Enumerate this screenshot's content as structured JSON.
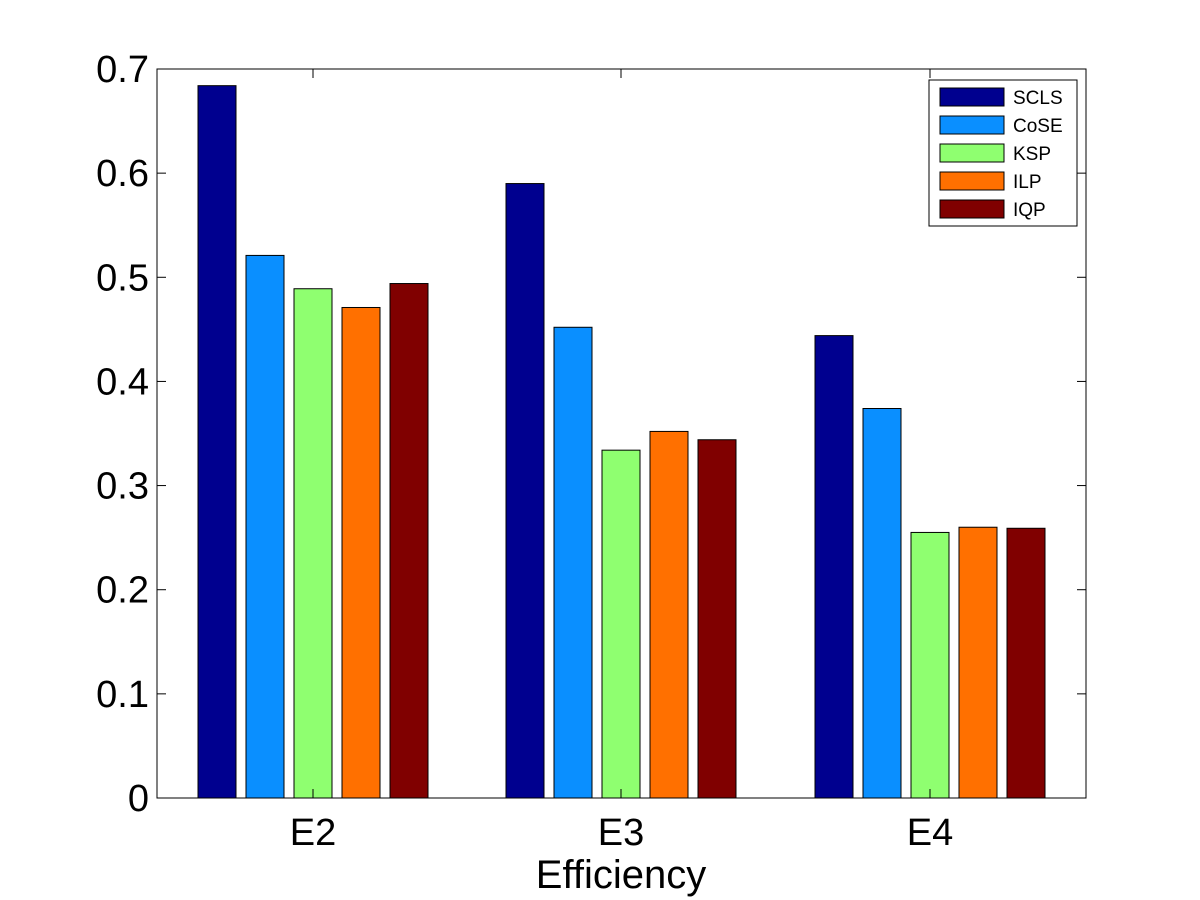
{
  "chart_data": {
    "type": "bar",
    "title": "",
    "xlabel": "Efficiency",
    "ylabel": "",
    "categories": [
      "E2",
      "E3",
      "E4"
    ],
    "ylim": [
      0,
      0.7
    ],
    "yticks": [
      "0",
      "0.1",
      "0.2",
      "0.3",
      "0.4",
      "0.5",
      "0.6",
      "0.7"
    ],
    "grid": false,
    "legend_position": "top-right",
    "series": [
      {
        "name": "SCLS",
        "color": "#00008F",
        "values": [
          0.684,
          0.59,
          0.444
        ]
      },
      {
        "name": "CoSE",
        "color": "#0A8FFF",
        "values": [
          0.521,
          0.452,
          0.374
        ]
      },
      {
        "name": "KSP",
        "color": "#8FFF70",
        "values": [
          0.489,
          0.334,
          0.255
        ]
      },
      {
        "name": "ILP",
        "color": "#FF7000",
        "values": [
          0.471,
          0.352,
          0.26
        ]
      },
      {
        "name": "IQP",
        "color": "#800000",
        "values": [
          0.494,
          0.344,
          0.259
        ]
      }
    ]
  }
}
